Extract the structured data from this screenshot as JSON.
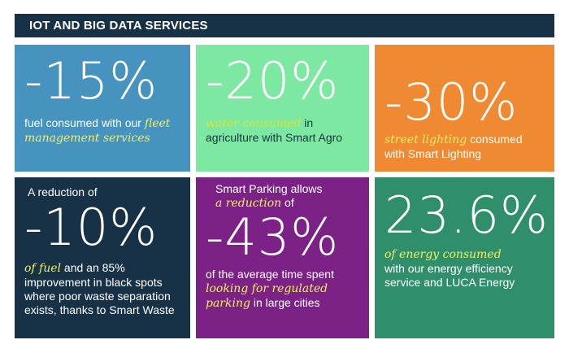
{
  "header": {
    "title": "IOT AND BIG DATA SERVICES"
  },
  "tiles": [
    {
      "big": "-15%",
      "pre": "fuel consumed with our",
      "hl": "fleet management services",
      "post": "",
      "color": "#4693bf"
    },
    {
      "big": "-20%",
      "hl": "water consumed",
      "post": "in agriculture with Smart Agro",
      "color": "#7ce8a1"
    },
    {
      "big": "-30%",
      "hl": "street lighting",
      "post": "consumed with Smart Lighting",
      "color": "#ef8a32"
    },
    {
      "intro": "A reduction of",
      "big": "-10%",
      "hl": "of fuel",
      "post": "and an 85% improvement in black spots where poor waste separation exists, thanks to Smart Waste",
      "color": "#173246"
    },
    {
      "intro": "Smart Parking allows",
      "hl_intro": "a reduction",
      "intro_post": "of",
      "big": "-43%",
      "pre": "of the average time spent",
      "hl": "looking for regulated parking",
      "post": "in large cities",
      "color": "#7c2287"
    },
    {
      "big": "23.6%",
      "hl": "of energy consumed",
      "post": "with our energy efficiency service and LUCA Energy",
      "color": "#2e8f6a"
    }
  ]
}
